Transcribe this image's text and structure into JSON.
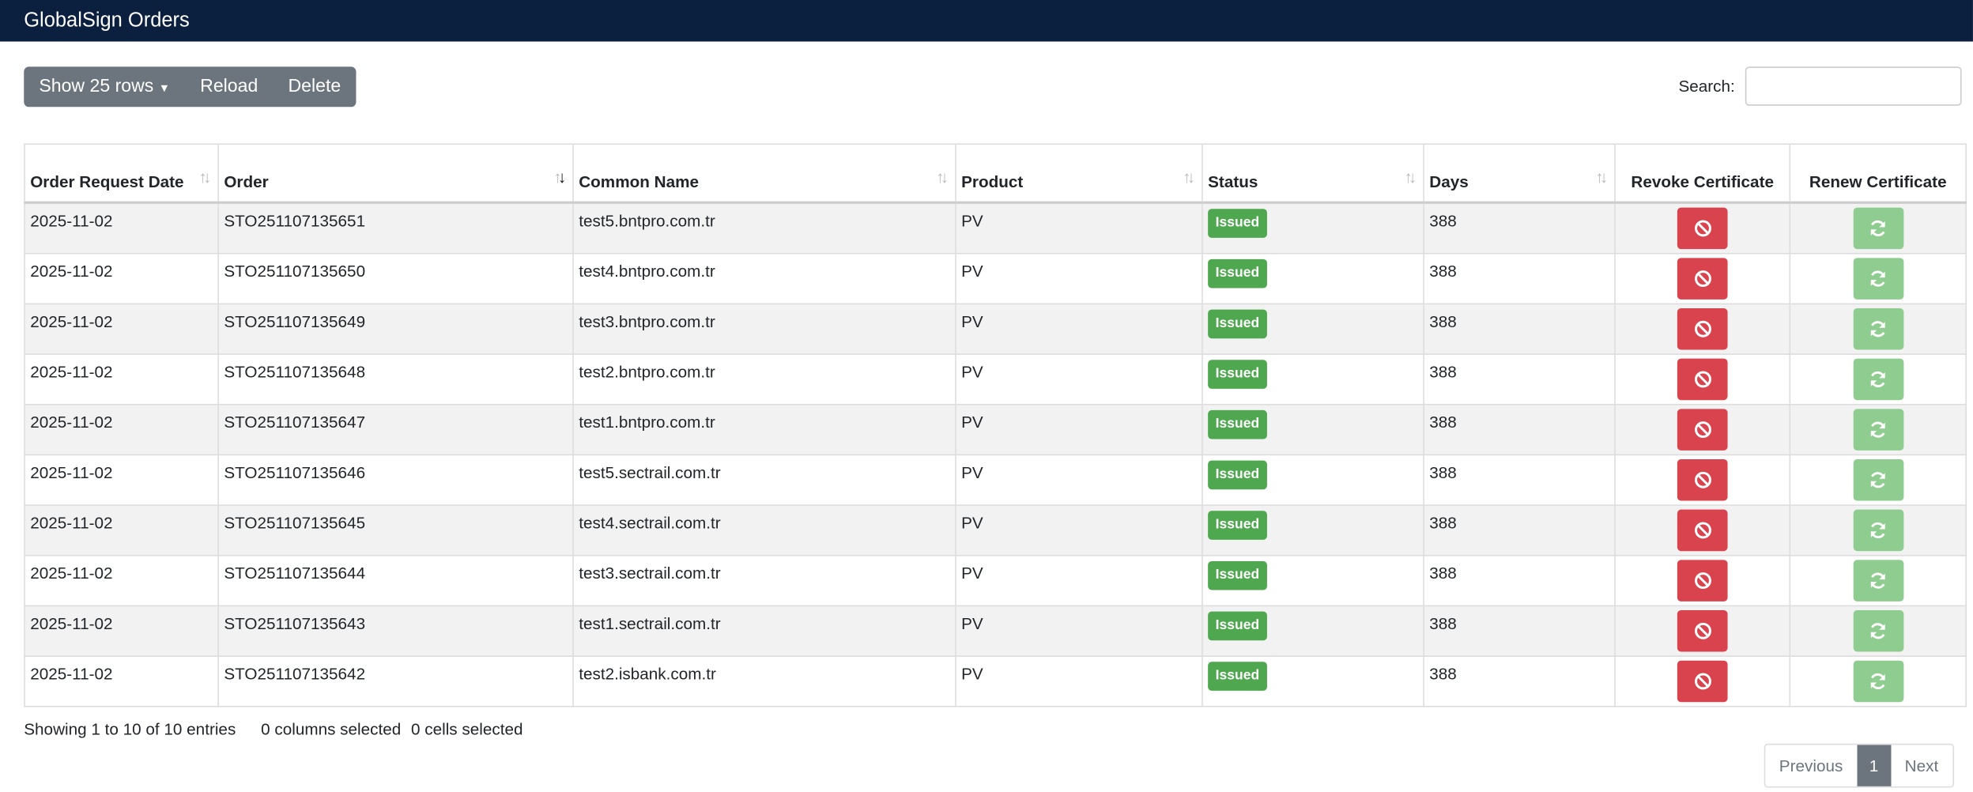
{
  "header": {
    "title": "GlobalSign Orders"
  },
  "toolbar": {
    "buttons": [
      "Show 25 rows",
      "Reload",
      "Delete"
    ],
    "search_label": "Search:"
  },
  "table": {
    "columns": [
      "Order Request Date",
      "Order",
      "Common Name",
      "Product",
      "Status",
      "Days",
      "Revoke Certificate",
      "Renew Certificate"
    ],
    "rows": [
      [
        "2025-11-02",
        "STO251107135651",
        "test5.bntpro.com.tr",
        "PV",
        "Issued",
        "388"
      ],
      [
        "2025-11-02",
        "STO251107135650",
        "test4.bntpro.com.tr",
        "PV",
        "Issued",
        "388"
      ],
      [
        "2025-11-02",
        "STO251107135649",
        "test3.bntpro.com.tr",
        "PV",
        "Issued",
        "388"
      ],
      [
        "2025-11-02",
        "STO251107135648",
        "test2.bntpro.com.tr",
        "PV",
        "Issued",
        "388"
      ],
      [
        "2025-11-02",
        "STO251107135647",
        "test1.bntpro.com.tr",
        "PV",
        "Issued",
        "388"
      ],
      [
        "2025-11-02",
        "STO251107135646",
        "test5.sectrail.com.tr",
        "PV",
        "Issued",
        "388"
      ],
      [
        "2025-11-02",
        "STO251107135645",
        "test4.sectrail.com.tr",
        "PV",
        "Issued",
        "388"
      ],
      [
        "2025-11-02",
        "STO251107135644",
        "test3.sectrail.com.tr",
        "PV",
        "Issued",
        "388"
      ],
      [
        "2025-11-02",
        "STO251107135643",
        "test1.sectrail.com.tr",
        "PV",
        "Issued",
        "388"
      ],
      [
        "2025-11-02",
        "STO251107135642",
        "test2.isbank.com.tr",
        "PV",
        "Issued",
        "388"
      ]
    ]
  },
  "footer": {
    "info": "Showing 1 to 10 of 10 entries",
    "selection": [
      "0 columns selected",
      "0 cells selected"
    ]
  },
  "pagination": [
    "Previous",
    "1",
    "Next"
  ]
}
